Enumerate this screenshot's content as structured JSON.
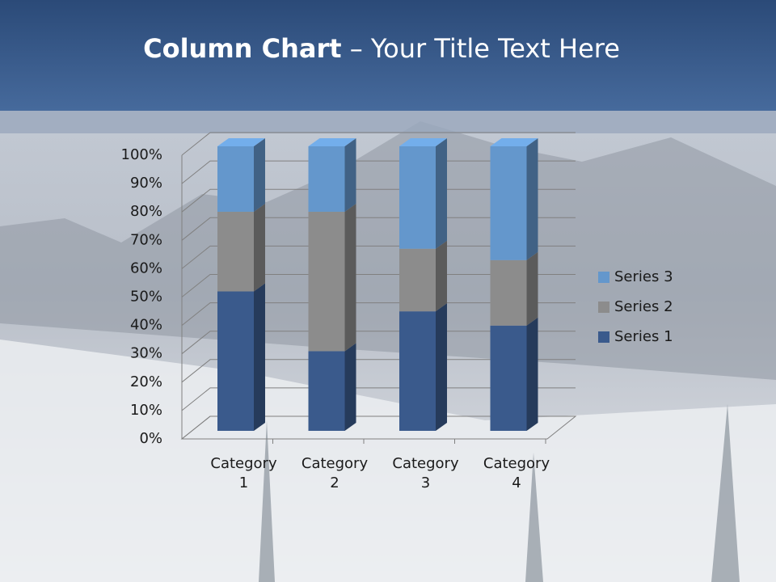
{
  "slide": {
    "title_bold": "Column Chart",
    "title_rest": "– Your Title Text Here"
  },
  "chart_data": {
    "type": "stacked-bar-3d",
    "categories": [
      "Category 1",
      "Category 2",
      "Category 3",
      "Category 4"
    ],
    "series": [
      {
        "name": "Series 1",
        "color": "#3a5a8c",
        "values": [
          49,
          28,
          42,
          37
        ]
      },
      {
        "name": "Series 2",
        "color": "#8c8c8c",
        "values": [
          28,
          49,
          22,
          23
        ]
      },
      {
        "name": "Series 3",
        "color": "#6497cc",
        "values": [
          23,
          23,
          36,
          40
        ]
      }
    ],
    "ylim": [
      0,
      100
    ],
    "yticks": [
      {
        "value": 0,
        "label": "0%"
      },
      {
        "value": 10,
        "label": "10%"
      },
      {
        "value": 20,
        "label": "20%"
      },
      {
        "value": 30,
        "label": "30%"
      },
      {
        "value": 40,
        "label": "40%"
      },
      {
        "value": 50,
        "label": "50%"
      },
      {
        "value": 60,
        "label": "60%"
      },
      {
        "value": 70,
        "label": "70%"
      },
      {
        "value": 80,
        "label": "80%"
      },
      {
        "value": 90,
        "label": "90%"
      },
      {
        "value": 100,
        "label": "100%"
      }
    ],
    "grid": true,
    "legend": "right"
  }
}
